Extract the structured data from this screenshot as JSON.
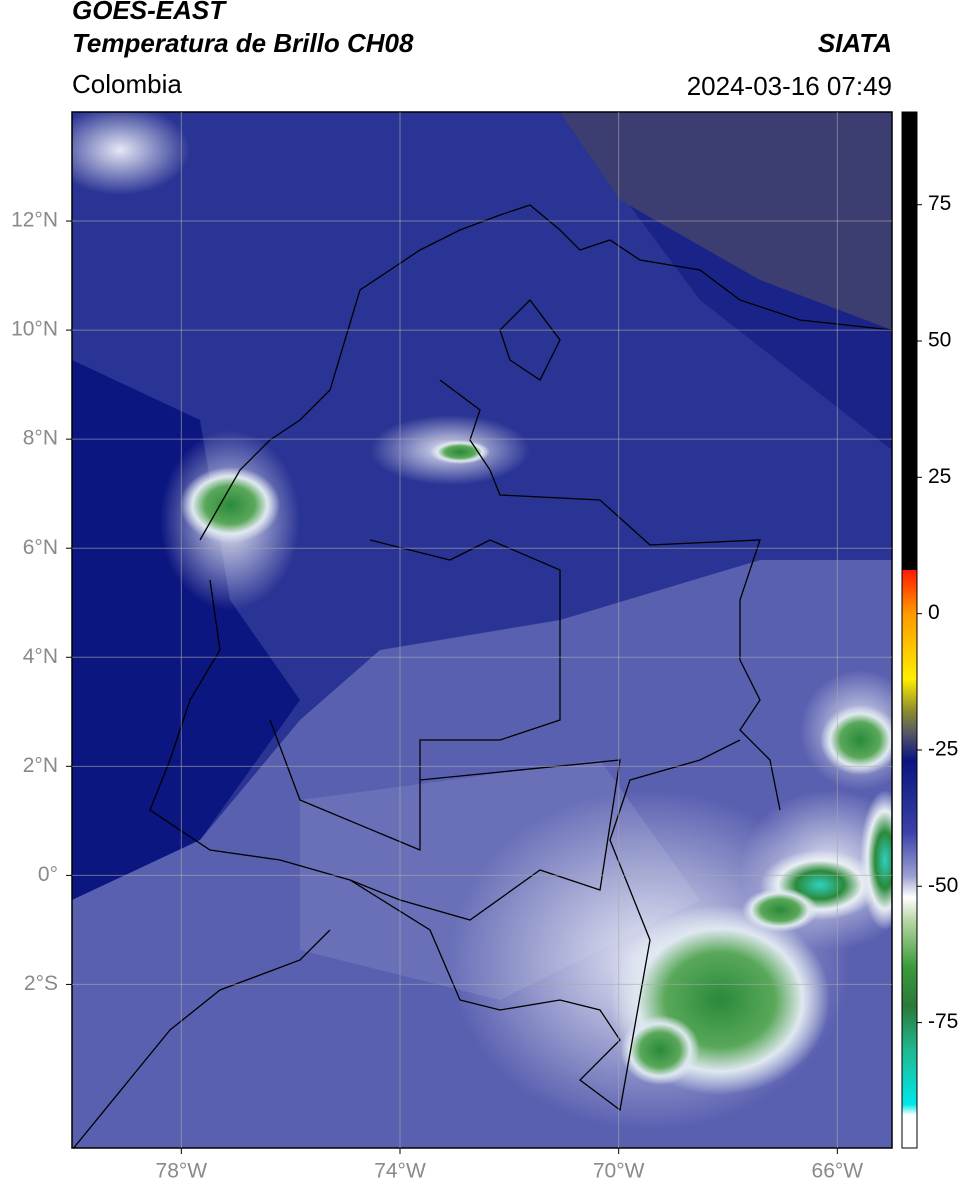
{
  "header": {
    "title_line1": "GOES-EAST",
    "title_line2": "Temperatura de Brillo CH08",
    "source": "SIATA",
    "region": "Colombia",
    "timestamp": "2024-03-16 07:49"
  },
  "map": {
    "xlim": [
      -80,
      -65
    ],
    "ylim": [
      -5,
      14
    ],
    "xticks": [
      {
        "value": -78,
        "label": "78°W"
      },
      {
        "value": -74,
        "label": "74°W"
      },
      {
        "value": -70,
        "label": "70°W"
      },
      {
        "value": -66,
        "label": "66°W"
      }
    ],
    "yticks": [
      {
        "value": 12,
        "label": "12°N"
      },
      {
        "value": 10,
        "label": "10°N"
      },
      {
        "value": 8,
        "label": "8°N"
      },
      {
        "value": 6,
        "label": "6°N"
      },
      {
        "value": 4,
        "label": "4°N"
      },
      {
        "value": 2,
        "label": "2°N"
      },
      {
        "value": 0,
        "label": "0°"
      },
      {
        "value": -2,
        "label": "2°S"
      }
    ],
    "grid": true
  },
  "colorbar": {
    "lim": [
      -98,
      92
    ],
    "ticks": [
      75,
      50,
      25,
      0,
      -25,
      -50,
      -75
    ]
  }
}
